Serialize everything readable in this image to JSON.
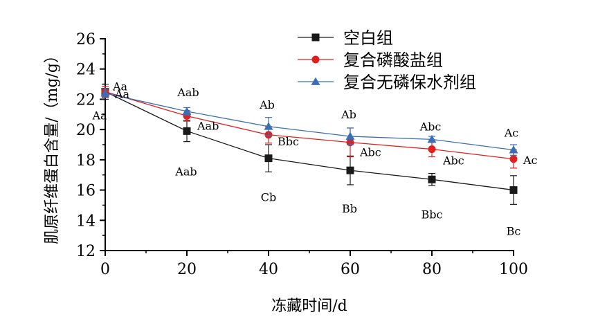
{
  "chart_data": {
    "type": "line",
    "title": "",
    "xlabel": "冻藏时间/d",
    "ylabel": "肌原纤维蛋白含量/（mg/g）",
    "x": [
      0,
      20,
      40,
      60,
      80,
      100
    ],
    "xlim": [
      0,
      100
    ],
    "ylim": [
      12,
      26
    ],
    "xticks": [
      "0",
      "20",
      "40",
      "60",
      "80",
      "100"
    ],
    "yticks": [
      "12",
      "14",
      "16",
      "18",
      "20",
      "22",
      "24",
      "26"
    ],
    "grid": false,
    "legend_position": "top-right",
    "series": [
      {
        "name": "空白组",
        "marker": "square",
        "color": "#1a1a1a",
        "values": [
          22.5,
          19.9,
          18.1,
          17.3,
          16.7,
          16.0
        ],
        "errors": [
          0.5,
          0.7,
          0.9,
          0.95,
          0.4,
          0.95
        ],
        "labels": [
          "Aa",
          "Aab",
          "Cb",
          "Bb",
          "Bbc",
          "Bc"
        ]
      },
      {
        "name": "复合磷酸盐组",
        "marker": "circle",
        "color": "#e02020",
        "values": [
          22.5,
          20.9,
          19.65,
          19.15,
          18.7,
          18.05
        ],
        "errors": [
          0.35,
          0.35,
          0.55,
          0.95,
          0.5,
          0.6
        ],
        "labels": [
          "Aa",
          "Aab",
          "Bbc",
          "Abc",
          "Abc",
          "Ac"
        ]
      },
      {
        "name": "复合无磷保水剂组",
        "marker": "triangle",
        "color": "#3a6fb5",
        "values": [
          22.4,
          21.2,
          20.2,
          19.55,
          19.35,
          18.65
        ],
        "errors": [
          0.3,
          0.25,
          0.6,
          0.55,
          0.2,
          0.35
        ],
        "labels": [
          "Aa",
          "Aab",
          "Ab",
          "Ab",
          "Abc",
          "Ac"
        ]
      }
    ]
  }
}
